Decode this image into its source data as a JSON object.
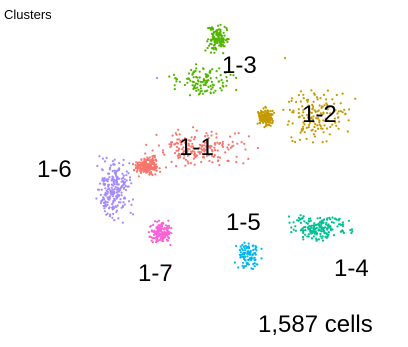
{
  "title": "Clusters",
  "cell_count_label": "1,587 cells",
  "chart_data": {
    "type": "scatter",
    "title": "Clusters",
    "xlabel": "",
    "ylabel": "",
    "axes_visible": false,
    "grid": false,
    "legend": "none",
    "total_cells": 1587,
    "clusters": [
      {
        "label": "1-1",
        "color": "#f8766d",
        "n": 380,
        "ellipses": [
          [
            197,
            149,
            68,
            23
          ],
          [
            147,
            166,
            16,
            12
          ]
        ]
      },
      {
        "label": "1-2",
        "color": "#c49a00",
        "n": 300,
        "ellipses": [
          [
            315,
            114,
            48,
            38
          ],
          [
            266,
            117,
            10,
            12
          ]
        ]
      },
      {
        "label": "1-3",
        "color": "#53b400",
        "n": 240,
        "ellipses": [
          [
            203,
            82,
            40,
            21
          ],
          [
            218,
            38,
            15,
            20
          ]
        ]
      },
      {
        "label": "1-4",
        "color": "#00c094",
        "n": 190,
        "ellipses": [
          [
            320,
            228,
            40,
            16
          ]
        ]
      },
      {
        "label": "1-5",
        "color": "#00b6eb",
        "n": 95,
        "ellipses": [
          [
            248,
            257,
            16,
            21
          ]
        ]
      },
      {
        "label": "1-6",
        "color": "#a58aff",
        "n": 240,
        "ellipses": [
          [
            114,
            188,
            23,
            40
          ]
        ]
      },
      {
        "label": "1-7",
        "color": "#fb61d7",
        "n": 142,
        "ellipses": [
          [
            161,
            232,
            15,
            16
          ]
        ]
      }
    ]
  }
}
